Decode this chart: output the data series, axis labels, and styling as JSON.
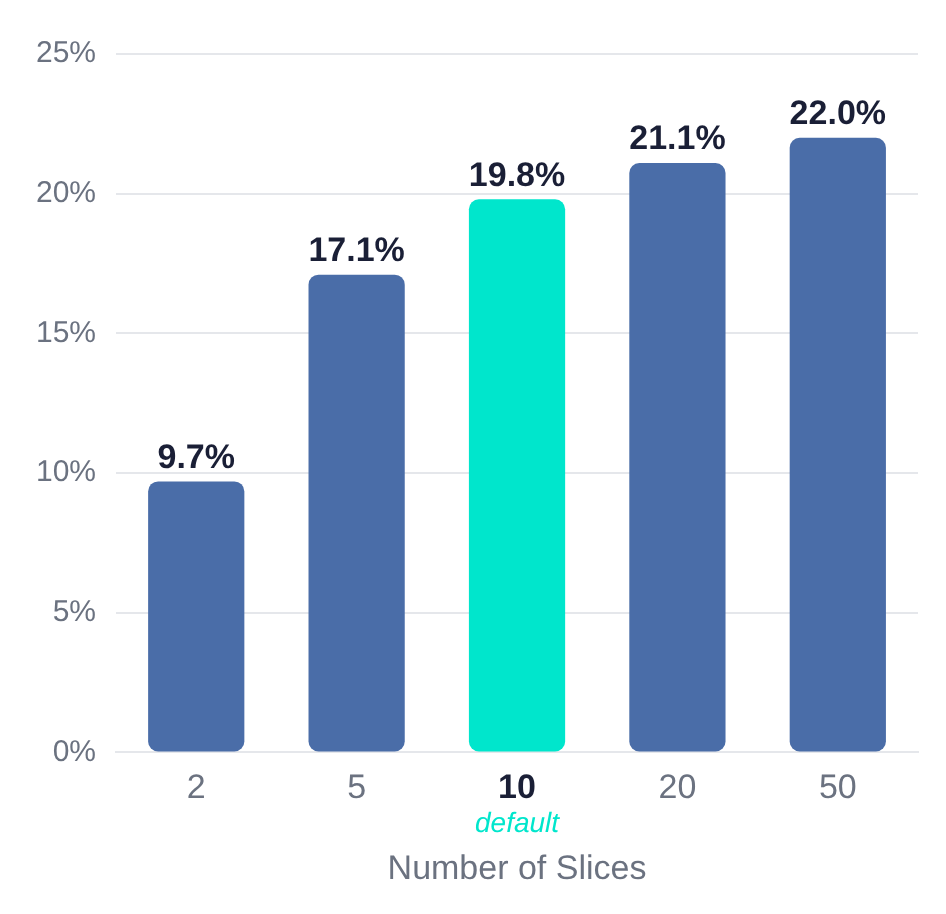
{
  "chart_data": {
    "type": "bar",
    "xlabel": "Number of Slices",
    "categories": [
      "2",
      "5",
      "10",
      "20",
      "50"
    ],
    "values": [
      9.7,
      17.1,
      19.8,
      21.1,
      22.0
    ],
    "colors": [
      "#4a6da8",
      "#4a6da8",
      "#00e6cc",
      "#4a6da8",
      "#4a6da8"
    ],
    "value_labels": [
      "9.7%",
      "17.1%",
      "19.8%",
      "21.1%",
      "22.0%"
    ],
    "ylim": [
      0,
      25
    ],
    "yticks": [
      {
        "value": 0,
        "label": "0%"
      },
      {
        "value": 5,
        "label": "5%"
      },
      {
        "value": 10,
        "label": "10%"
      },
      {
        "value": 15,
        "label": "15%"
      },
      {
        "value": 20,
        "label": "20%"
      },
      {
        "value": 25,
        "label": "25%"
      }
    ],
    "grid": "y",
    "legend": false,
    "annotations": [
      "default"
    ]
  }
}
